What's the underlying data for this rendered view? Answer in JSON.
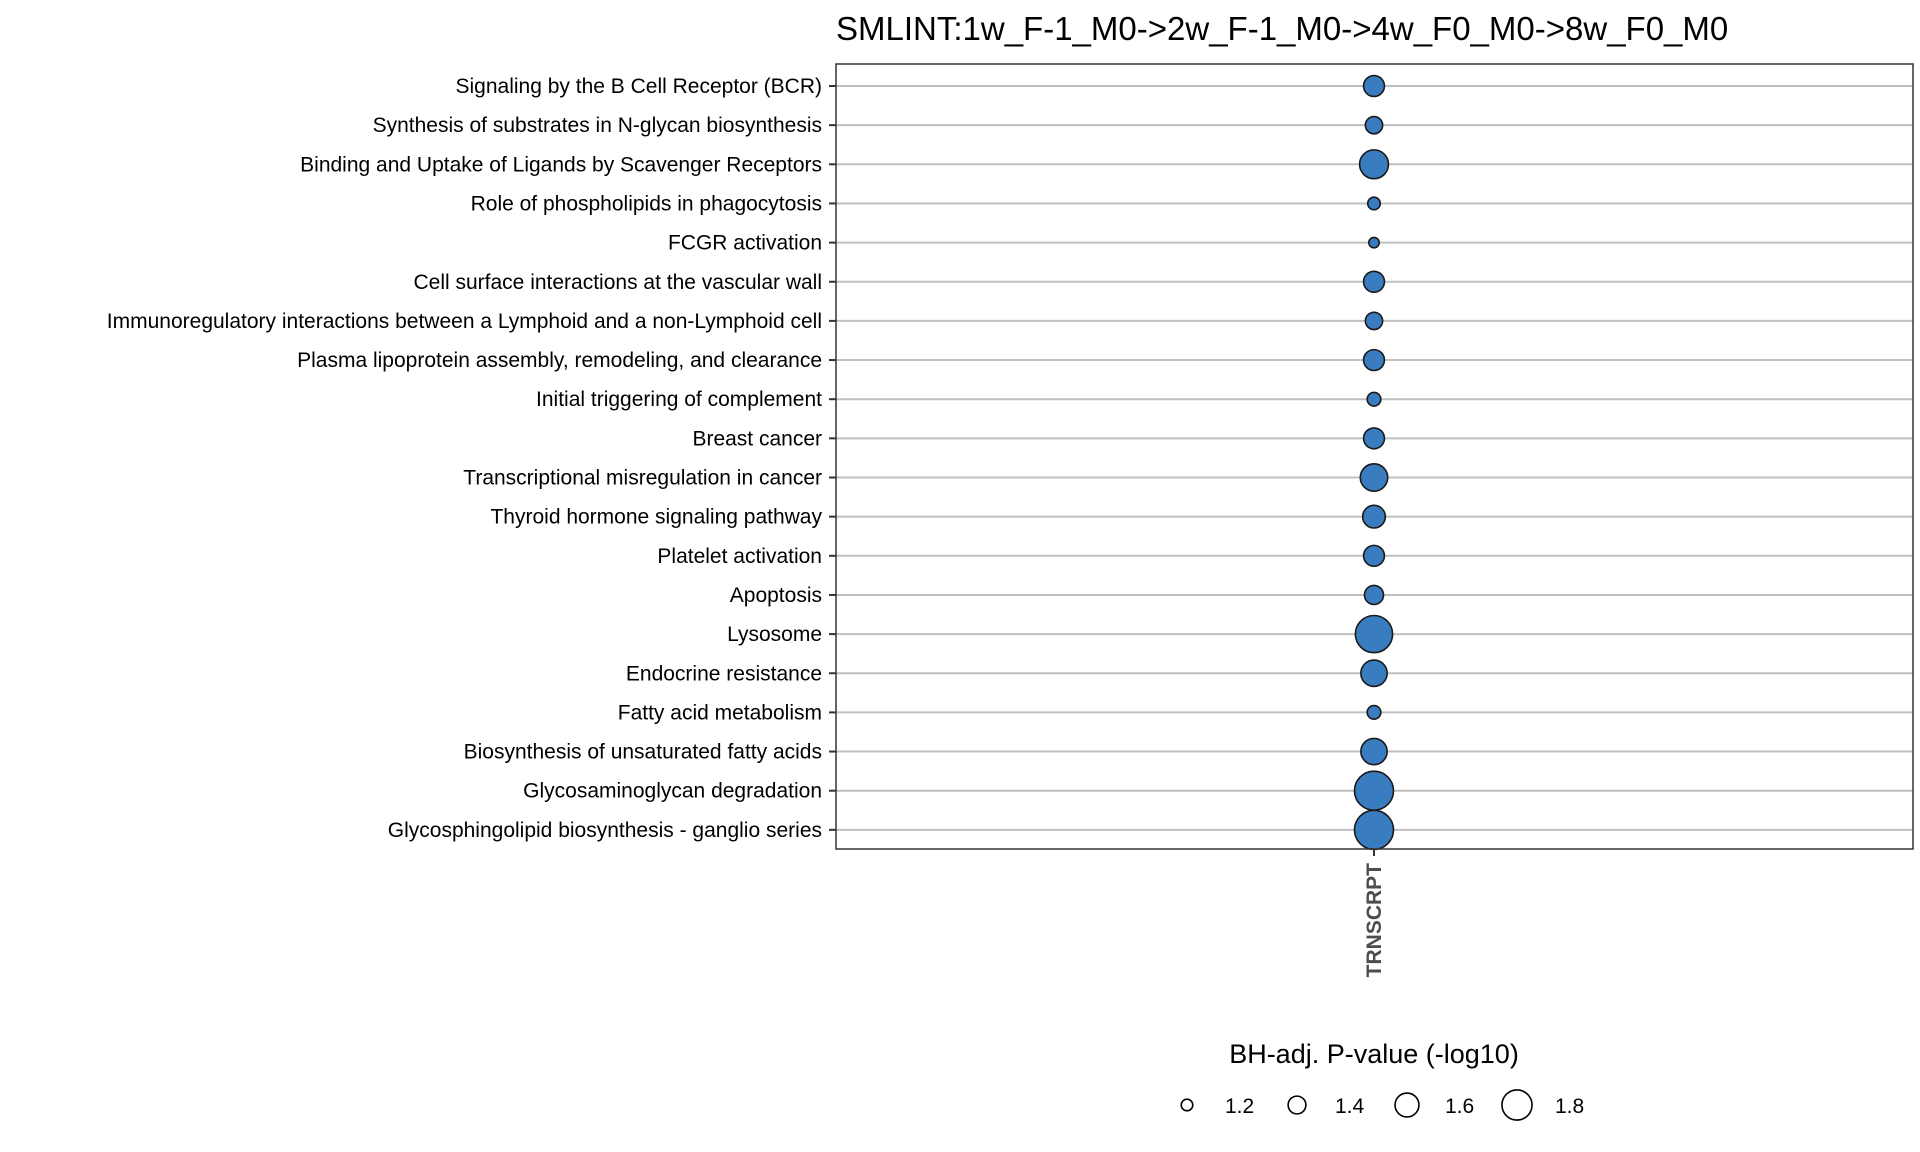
{
  "chart_data": {
    "type": "scatter",
    "title": "SMLINT:1w_F-1_M0->2w_F-1_M0->4w_F0_M0->8w_F0_M0",
    "x_categories": [
      "TRNSCRPT"
    ],
    "y_categories": [
      "Signaling by the B Cell Receptor (BCR)",
      "Synthesis of substrates in N-glycan biosynthesis",
      "Binding and Uptake of Ligands by Scavenger Receptors",
      "Role of phospholipids in phagocytosis",
      "FCGR activation",
      "Cell surface interactions at the vascular wall",
      "Immunoregulatory interactions between a Lymphoid and a non-Lymphoid cell",
      "Plasma lipoprotein assembly, remodeling, and clearance",
      "Initial triggering of complement",
      "Breast cancer",
      "Transcriptional misregulation in cancer",
      "Thyroid hormone signaling pathway",
      "Platelet activation",
      "Apoptosis",
      "Lysosome",
      "Endocrine resistance",
      "Fatty acid metabolism",
      "Biosynthesis of unsaturated fatty acids",
      "Glycosaminoglycan degradation",
      "Glycosphingolipid biosynthesis - ganglio series"
    ],
    "points": [
      {
        "x": "TRNSCRPT",
        "y": "Signaling by the B Cell Receptor (BCR)",
        "size": 1.4
      },
      {
        "x": "TRNSCRPT",
        "y": "Synthesis of substrates in N-glycan biosynthesis",
        "size": 1.3
      },
      {
        "x": "TRNSCRPT",
        "y": "Binding and Uptake of Ligands by Scavenger Receptors",
        "size": 1.62
      },
      {
        "x": "TRNSCRPT",
        "y": "Role of phospholipids in phagocytosis",
        "size": 1.17
      },
      {
        "x": "TRNSCRPT",
        "y": "FCGR activation",
        "size": 1.11
      },
      {
        "x": "TRNSCRPT",
        "y": "Cell surface interactions at the vascular wall",
        "size": 1.4
      },
      {
        "x": "TRNSCRPT",
        "y": "Immunoregulatory interactions between a Lymphoid and a non-Lymphoid cell",
        "size": 1.3
      },
      {
        "x": "TRNSCRPT",
        "y": "Plasma lipoprotein assembly, remodeling, and clearance",
        "size": 1.4
      },
      {
        "x": "TRNSCRPT",
        "y": "Initial triggering of complement",
        "size": 1.2
      },
      {
        "x": "TRNSCRPT",
        "y": "Breast cancer",
        "size": 1.4
      },
      {
        "x": "TRNSCRPT",
        "y": "Transcriptional misregulation in cancer",
        "size": 1.58
      },
      {
        "x": "TRNSCRPT",
        "y": "Thyroid hormone signaling pathway",
        "size": 1.45
      },
      {
        "x": "TRNSCRPT",
        "y": "Platelet activation",
        "size": 1.4
      },
      {
        "x": "TRNSCRPT",
        "y": "Apoptosis",
        "size": 1.35
      },
      {
        "x": "TRNSCRPT",
        "y": "Lysosome",
        "size": 1.85
      },
      {
        "x": "TRNSCRPT",
        "y": "Endocrine resistance",
        "size": 1.55
      },
      {
        "x": "TRNSCRPT",
        "y": "Fatty acid metabolism",
        "size": 1.2
      },
      {
        "x": "TRNSCRPT",
        "y": "Biosynthesis of unsaturated fatty acids",
        "size": 1.55
      },
      {
        "x": "TRNSCRPT",
        "y": "Glycosaminoglycan degradation",
        "size": 1.9
      },
      {
        "x": "TRNSCRPT",
        "y": "Glycosphingolipid biosynthesis - ganglio series",
        "size": 1.9
      }
    ],
    "size_legend": {
      "title": "BH-adj. P-value (-log10)",
      "values": [
        1.2,
        1.4,
        1.6,
        1.8
      ],
      "labels": [
        "1.2",
        "1.4",
        "1.6",
        "1.8"
      ],
      "placement": "bottom"
    },
    "grid": true,
    "colors": {
      "point_fill": "#3a7cc0",
      "point_stroke": "#1a1a1a",
      "grid_line": "#c0c0c0",
      "panel_border": "#333333",
      "axis_text": "#4d4d4d"
    }
  }
}
